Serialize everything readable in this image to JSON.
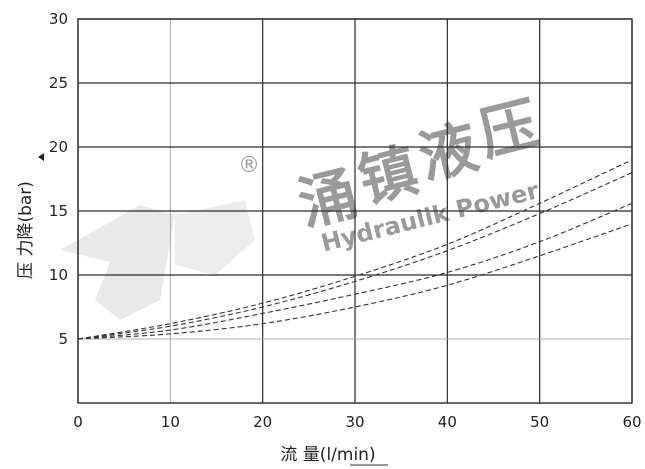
{
  "chart_data": {
    "type": "line",
    "title": "",
    "xlabel": "流 量(l/min)",
    "ylabel": "压 力降(bar)",
    "xlim": [
      0,
      60
    ],
    "ylim": [
      0,
      30
    ],
    "x_ticks": [
      "0",
      "10",
      "20",
      "30",
      "40",
      "50",
      "60"
    ],
    "y_ticks": [
      "5",
      "10",
      "15",
      "20",
      "25",
      "30"
    ],
    "grid": true,
    "series": [
      {
        "x": [
          0,
          10,
          20,
          30,
          40,
          50,
          60
        ],
        "values": [
          5.0,
          6.2,
          7.8,
          9.9,
          12.4,
          15.6,
          19.0
        ]
      },
      {
        "x": [
          0,
          10,
          20,
          30,
          40,
          50,
          60
        ],
        "values": [
          5.0,
          6.0,
          7.5,
          9.5,
          11.9,
          14.8,
          18.0
        ]
      },
      {
        "x": [
          0,
          10,
          20,
          30,
          40,
          50,
          60
        ],
        "values": [
          5.0,
          5.7,
          7.0,
          8.5,
          10.2,
          12.6,
          15.6
        ]
      },
      {
        "x": [
          0,
          10,
          20,
          30,
          40,
          50,
          60
        ],
        "values": [
          5.0,
          5.4,
          6.2,
          7.5,
          9.2,
          11.5,
          14.0
        ]
      }
    ]
  },
  "watermark": {
    "chars": [
      "涌",
      "镇",
      "液",
      "压"
    ],
    "brand_en": "Hydraulik Power",
    "registered": "®",
    "color": "#b9b9b9"
  }
}
